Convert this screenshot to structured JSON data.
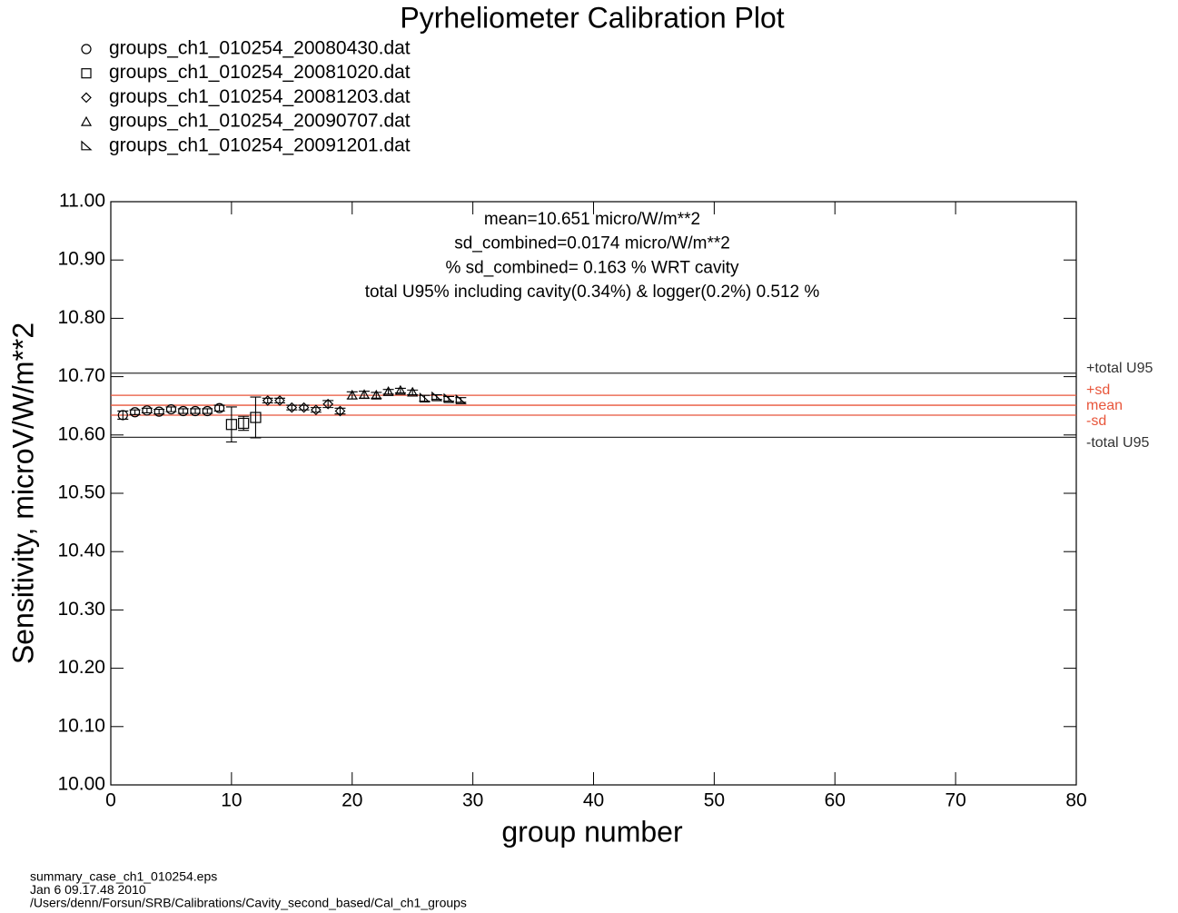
{
  "chart_data": {
    "type": "scatter",
    "title": "Pyrheliometer Calibration Plot",
    "x_label": "group number",
    "y_label": "Sensitivity, microV/W/m**2",
    "annotations": [
      "mean=10.651 micro/W/m**2",
      "sd_combined=0.0174 micro/W/m**2",
      "% sd_combined= 0.163 % WRT cavity",
      "total U95% including cavity(0.34%) & logger(0.2%) 0.512 %"
    ],
    "footer": [
      "summary_case_ch1_010254.eps",
      "Jan  6 09.17.48 2010",
      "/Users/denn/Forsun/SRB/Calibrations/Cavity_second_based/Cal_ch1_groups"
    ],
    "xlim": [
      0,
      80
    ],
    "ylim": [
      10.0,
      11.0
    ],
    "xticks": [
      0,
      10,
      20,
      30,
      40,
      50,
      60,
      70,
      80
    ],
    "yticks": [
      {
        "value": 10.0,
        "label": "10.00"
      },
      {
        "value": 10.1,
        "label": "10.10"
      },
      {
        "value": 10.2,
        "label": "10.20"
      },
      {
        "value": 10.3,
        "label": "10.30"
      },
      {
        "value": 10.4,
        "label": "10.40"
      },
      {
        "value": 10.5,
        "label": "10.50"
      },
      {
        "value": 10.6,
        "label": "10.60"
      },
      {
        "value": 10.7,
        "label": "10.70"
      },
      {
        "value": 10.8,
        "label": "10.80"
      },
      {
        "value": 10.9,
        "label": "10.90"
      },
      {
        "value": 11.0,
        "label": "11.00"
      }
    ],
    "series": [
      {
        "name": "groups_ch1_010254_20080430.dat",
        "marker": "circle",
        "color": "#000000",
        "x": [
          1,
          2,
          3,
          4,
          5,
          6,
          7,
          8,
          9
        ],
        "values": [
          10.634,
          10.639,
          10.642,
          10.64,
          10.644,
          10.641,
          10.641,
          10.641,
          10.646
        ],
        "errors": [
          0.007,
          0.004,
          0.004,
          0.004,
          0.004,
          0.004,
          0.004,
          0.004,
          0.005
        ]
      },
      {
        "name": "groups_ch1_010254_20081020.dat",
        "marker": "square",
        "color": "#000000",
        "x": [
          10,
          11,
          12
        ],
        "values": [
          10.618,
          10.62,
          10.63
        ],
        "errors": [
          0.03,
          0.012,
          0.035
        ]
      },
      {
        "name": "groups_ch1_010254_20081203.dat",
        "marker": "diamond",
        "color": "#000000",
        "x": [
          13,
          14,
          15,
          16,
          17,
          18,
          19
        ],
        "values": [
          10.659,
          10.659,
          10.647,
          10.647,
          10.643,
          10.653,
          10.641
        ],
        "errors": [
          0.004,
          0.004,
          0.004,
          0.004,
          0.004,
          0.006,
          0.005
        ]
      },
      {
        "name": "groups_ch1_010254_20090707.dat",
        "marker": "triangle",
        "color": "#000000",
        "x": [
          20,
          21,
          22,
          23,
          24,
          25
        ],
        "values": [
          10.668,
          10.669,
          10.668,
          10.674,
          10.676,
          10.673
        ],
        "errors": [
          0.006,
          0.006,
          0.005,
          0.004,
          0.004,
          0.004
        ]
      },
      {
        "name": "groups_ch1_010254_20091201.dat",
        "marker": "right-triangle",
        "color": "#000000",
        "x": [
          26,
          27,
          28,
          29
        ],
        "values": [
          10.663,
          10.665,
          10.662,
          10.66
        ],
        "errors": [
          0.005,
          0.004,
          0.004,
          0.004
        ]
      }
    ],
    "reference_lines": [
      {
        "label": "+total U95",
        "value": 10.706,
        "color": "#333333"
      },
      {
        "label": "+sd",
        "value": 10.668,
        "color": "#e8553a"
      },
      {
        "label": "mean",
        "value": 10.651,
        "color": "#e8553a"
      },
      {
        "label": "-sd",
        "value": 10.634,
        "color": "#e8553a"
      },
      {
        "label": "-total U95",
        "value": 10.596,
        "color": "#333333"
      }
    ]
  }
}
